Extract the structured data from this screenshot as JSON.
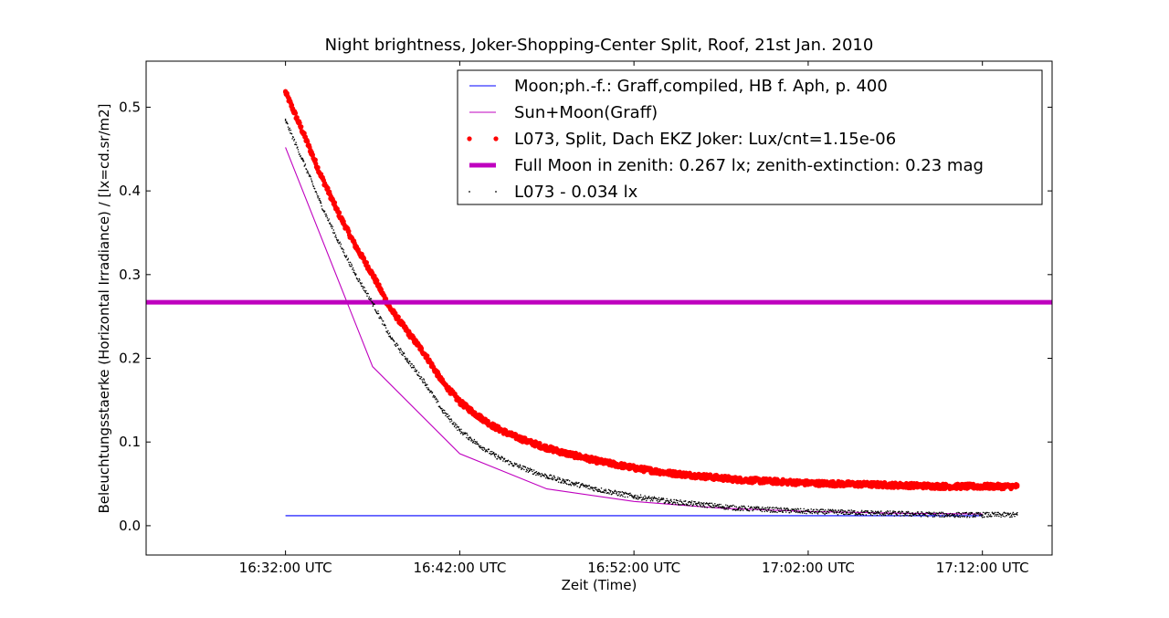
{
  "chart_data": {
    "type": "line",
    "title": "Night brightness, Joker-Shopping-Center Split, Roof, 21st Jan. 2010",
    "xlabel": "Zeit (Time)",
    "ylabel": "Beleuchtungsstaerke (Horizontal Irradiance) / [lx=cd.sr/m2]",
    "xlim": [
      "16:24:00 UTC",
      "17:16:00 UTC"
    ],
    "ylim": [
      -0.035,
      0.555
    ],
    "xticks": [
      "16:32:00 UTC",
      "16:42:00 UTC",
      "16:52:00 UTC",
      "17:02:00 UTC",
      "17:12:00 UTC"
    ],
    "yticks": [
      "0.0",
      "0.1",
      "0.2",
      "0.3",
      "0.4",
      "0.5"
    ],
    "grid": false,
    "legend_position": "top-right",
    "series": [
      {
        "name": "Moon;ph.-f.: Graff,compiled, HB f. Aph, p. 400",
        "style": "line",
        "color": "#0000ff",
        "x": [
          "16:32:00",
          "16:37:00",
          "16:42:00",
          "16:47:00",
          "16:52:00",
          "16:57:00",
          "17:02:00",
          "17:07:00",
          "17:12:00"
        ],
        "values": [
          0.012,
          0.012,
          0.012,
          0.012,
          0.012,
          0.012,
          0.012,
          0.012,
          0.012
        ]
      },
      {
        "name": "Sun+Moon(Graff)",
        "style": "line",
        "color": "#bf00bf",
        "x": [
          "16:32:00",
          "16:37:00",
          "16:42:00",
          "16:47:00",
          "16:52:00",
          "16:57:00",
          "17:02:00",
          "17:07:00",
          "17:12:00"
        ],
        "values": [
          0.452,
          0.19,
          0.086,
          0.044,
          0.029,
          0.021,
          0.017,
          0.015,
          0.014
        ]
      },
      {
        "name": "L073, Split, Dach EKZ Joker: Lux/cnt=1.15e-06",
        "style": "points",
        "color": "#ff0000",
        "x": [
          "16:32:00",
          "16:33:00",
          "16:34:00",
          "16:35:00",
          "16:36:00",
          "16:37:00",
          "16:38:00",
          "16:39:00",
          "16:40:00",
          "16:41:00",
          "16:42:00",
          "16:43:00",
          "16:44:00",
          "16:45:00",
          "16:46:00",
          "16:47:00",
          "16:48:00",
          "16:50:00",
          "16:52:00",
          "16:54:00",
          "16:56:00",
          "16:58:00",
          "17:00:00",
          "17:02:00",
          "17:04:00",
          "17:06:00",
          "17:08:00",
          "17:10:00",
          "17:12:00",
          "17:14:00"
        ],
        "values": [
          0.518,
          0.47,
          0.42,
          0.375,
          0.335,
          0.3,
          0.26,
          0.232,
          0.205,
          0.172,
          0.148,
          0.132,
          0.118,
          0.108,
          0.1,
          0.093,
          0.087,
          0.077,
          0.069,
          0.063,
          0.059,
          0.055,
          0.053,
          0.051,
          0.05,
          0.049,
          0.048,
          0.047,
          0.047,
          0.047
        ]
      },
      {
        "name": "Full Moon in zenith: 0.267 lx; zenith-extinction: 0.23 mag",
        "style": "thick-line",
        "color": "#bf00bf",
        "x": [
          "16:24:00",
          "17:16:00"
        ],
        "values": [
          0.267,
          0.267
        ]
      },
      {
        "name": "L073 - 0.034 lx",
        "style": "points",
        "color": "#000000",
        "x": [
          "16:32:00",
          "16:33:00",
          "16:34:00",
          "16:35:00",
          "16:36:00",
          "16:37:00",
          "16:38:00",
          "16:39:00",
          "16:40:00",
          "16:41:00",
          "16:42:00",
          "16:43:00",
          "16:44:00",
          "16:45:00",
          "16:46:00",
          "16:47:00",
          "16:48:00",
          "16:50:00",
          "16:52:00",
          "16:54:00",
          "16:56:00",
          "16:58:00",
          "17:00:00",
          "17:02:00",
          "17:04:00",
          "17:06:00",
          "17:08:00",
          "17:10:00",
          "17:12:00",
          "17:14:00"
        ],
        "values": [
          0.484,
          0.436,
          0.386,
          0.341,
          0.301,
          0.266,
          0.226,
          0.198,
          0.171,
          0.138,
          0.114,
          0.098,
          0.084,
          0.074,
          0.066,
          0.059,
          0.053,
          0.043,
          0.035,
          0.029,
          0.025,
          0.021,
          0.019,
          0.017,
          0.016,
          0.015,
          0.014,
          0.013,
          0.013,
          0.013
        ]
      }
    ]
  }
}
